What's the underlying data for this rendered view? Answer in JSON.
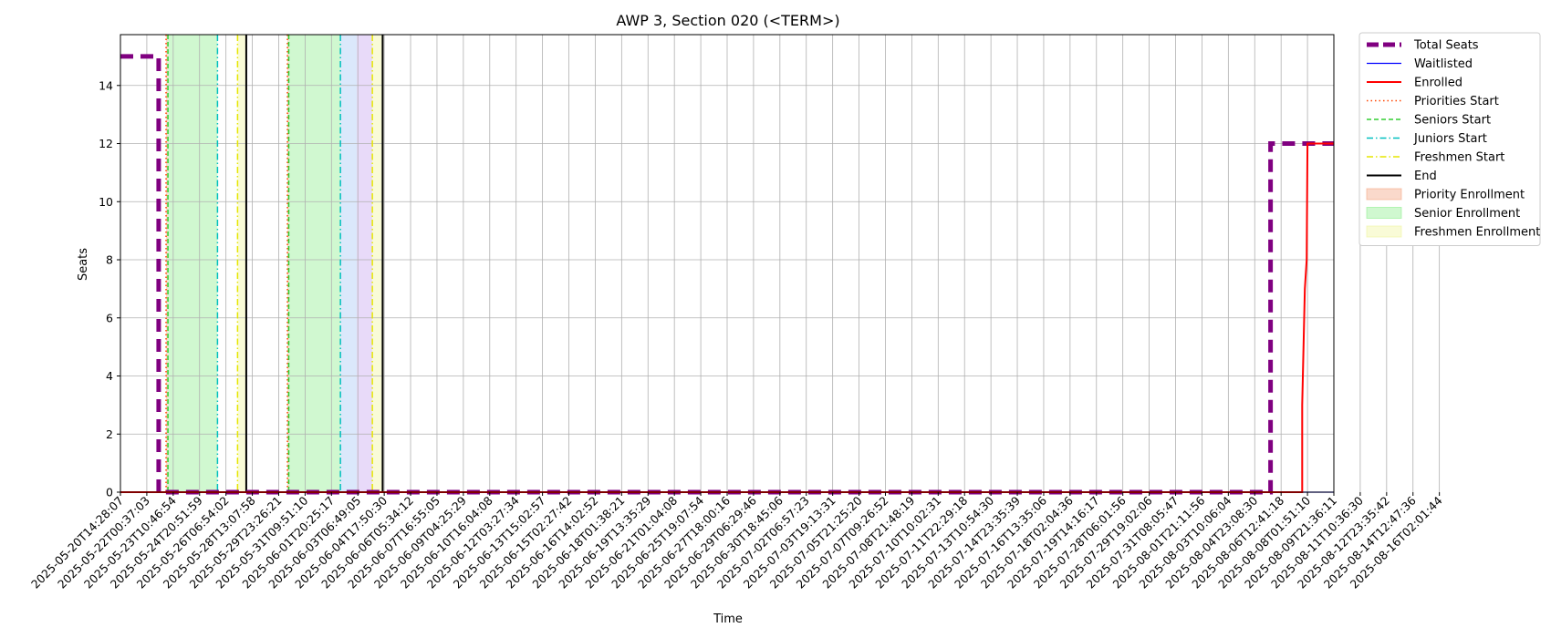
{
  "chart_data": {
    "type": "line",
    "title": "AWP 3, Section 020 (<TERM>)",
    "xlabel": "Time",
    "ylabel": "Seats",
    "ylim": [
      0,
      15.75
    ],
    "yticks": [
      0,
      2,
      4,
      6,
      8,
      10,
      12,
      14
    ],
    "grid": true,
    "legend_position": "outside-right",
    "x_ticks": [
      "2025-05-20T14:28:07",
      "2025-05-22T00:37:03",
      "2025-05-23T10:46:54",
      "2025-05-24T20:51:59",
      "2025-05-26T06:54:02",
      "2025-05-28T13:07:58",
      "2025-05-29T23:26:21",
      "2025-05-31T09:51:10",
      "2025-06-01T20:25:17",
      "2025-06-03T06:49:05",
      "2025-06-04T17:50:30",
      "2025-06-06T05:34:12",
      "2025-06-07T16:55:05",
      "2025-06-09T04:25:29",
      "2025-06-10T16:04:08",
      "2025-06-12T03:27:34",
      "2025-06-13T15:02:57",
      "2025-06-15T02:27:42",
      "2025-06-16T14:02:52",
      "2025-06-18T01:38:21",
      "2025-06-19T13:35:29",
      "2025-06-21T01:04:08",
      "2025-06-25T19:07:54",
      "2025-06-27T18:00:16",
      "2025-06-29T06:29:46",
      "2025-06-30T18:45:06",
      "2025-07-02T06:57:23",
      "2025-07-03T19:13:31",
      "2025-07-05T21:25:20",
      "2025-07-07T09:26:52",
      "2025-07-08T21:48:19",
      "2025-07-10T10:02:31",
      "2025-07-11T22:29:18",
      "2025-07-13T10:54:30",
      "2025-07-14T23:35:39",
      "2025-07-16T13:35:06",
      "2025-07-18T02:04:36",
      "2025-07-19T14:16:17",
      "2025-07-28T06:01:56",
      "2025-07-29T19:02:06",
      "2025-07-31T08:05:47",
      "2025-08-01T21:11:56",
      "2025-08-03T10:06:04",
      "2025-08-04T23:08:30",
      "2025-08-06T12:41:18",
      "2025-08-08T01:51:10",
      "2025-08-09T21:36:11",
      "2025-08-11T10:36:30",
      "2025-08-12T23:35:42",
      "2025-08-14T12:47:36",
      "2025-08-16T02:01:44"
    ],
    "series": [
      {
        "name": "Total Seats",
        "color": "#800080",
        "style": "dashed-thick",
        "points": [
          [
            0,
            15
          ],
          [
            1.45,
            15
          ],
          [
            1.45,
            0
          ],
          [
            43.6,
            0
          ],
          [
            43.6,
            12
          ],
          [
            46.0,
            12
          ]
        ]
      },
      {
        "name": "Waitlisted",
        "color": "#0000ff",
        "style": "solid-thin",
        "points": [
          [
            0,
            0
          ],
          [
            46.0,
            0
          ]
        ]
      },
      {
        "name": "Enrolled",
        "color": "#ff0000",
        "style": "solid",
        "points": [
          [
            0,
            0
          ],
          [
            44.8,
            0
          ],
          [
            44.8,
            3
          ],
          [
            44.9,
            7
          ],
          [
            44.97,
            8
          ],
          [
            45.0,
            12
          ],
          [
            46.0,
            12
          ]
        ]
      }
    ],
    "markers": [
      {
        "name": "Priorities Start",
        "color": "#ff4500",
        "style": "dotted",
        "x": [
          1.73,
          6.33
        ]
      },
      {
        "name": "Seniors Start",
        "color": "#32cd32",
        "style": "dashed",
        "x": [
          1.8,
          6.38
        ]
      },
      {
        "name": "Juniors Start",
        "color": "#00bfbf",
        "style": "dashdot",
        "x": [
          3.68,
          8.34
        ]
      },
      {
        "name": "Freshmen Start",
        "color": "#e6e600",
        "style": "dashdot",
        "x": [
          4.44,
          9.55
        ]
      },
      {
        "name": "End",
        "color": "#000000",
        "style": "solid",
        "x": [
          4.77,
          9.94
        ]
      }
    ],
    "spans": [
      {
        "name": "Priority Enrollment",
        "color": "#f4a582",
        "ranges": [
          [
            1.73,
            1.8
          ],
          [
            6.33,
            6.38
          ]
        ]
      },
      {
        "name": "Senior Enrollment",
        "color": "#90ee90",
        "ranges": [
          [
            1.8,
            3.68
          ],
          [
            6.38,
            8.34
          ]
        ]
      },
      {
        "name": "Freshmen Enrollment",
        "color": "#f0f5a0",
        "ranges": [
          [
            4.44,
            4.77
          ],
          [
            9.55,
            9.94
          ]
        ]
      },
      {
        "name": "",
        "color": "#a9c8f5",
        "ranges": [
          [
            8.34,
            8.96
          ]
        ]
      },
      {
        "name": "",
        "color": "#c8a8f0",
        "ranges": [
          [
            8.96,
            9.55
          ]
        ]
      }
    ],
    "x_extent": [
      0,
      46.0
    ]
  }
}
